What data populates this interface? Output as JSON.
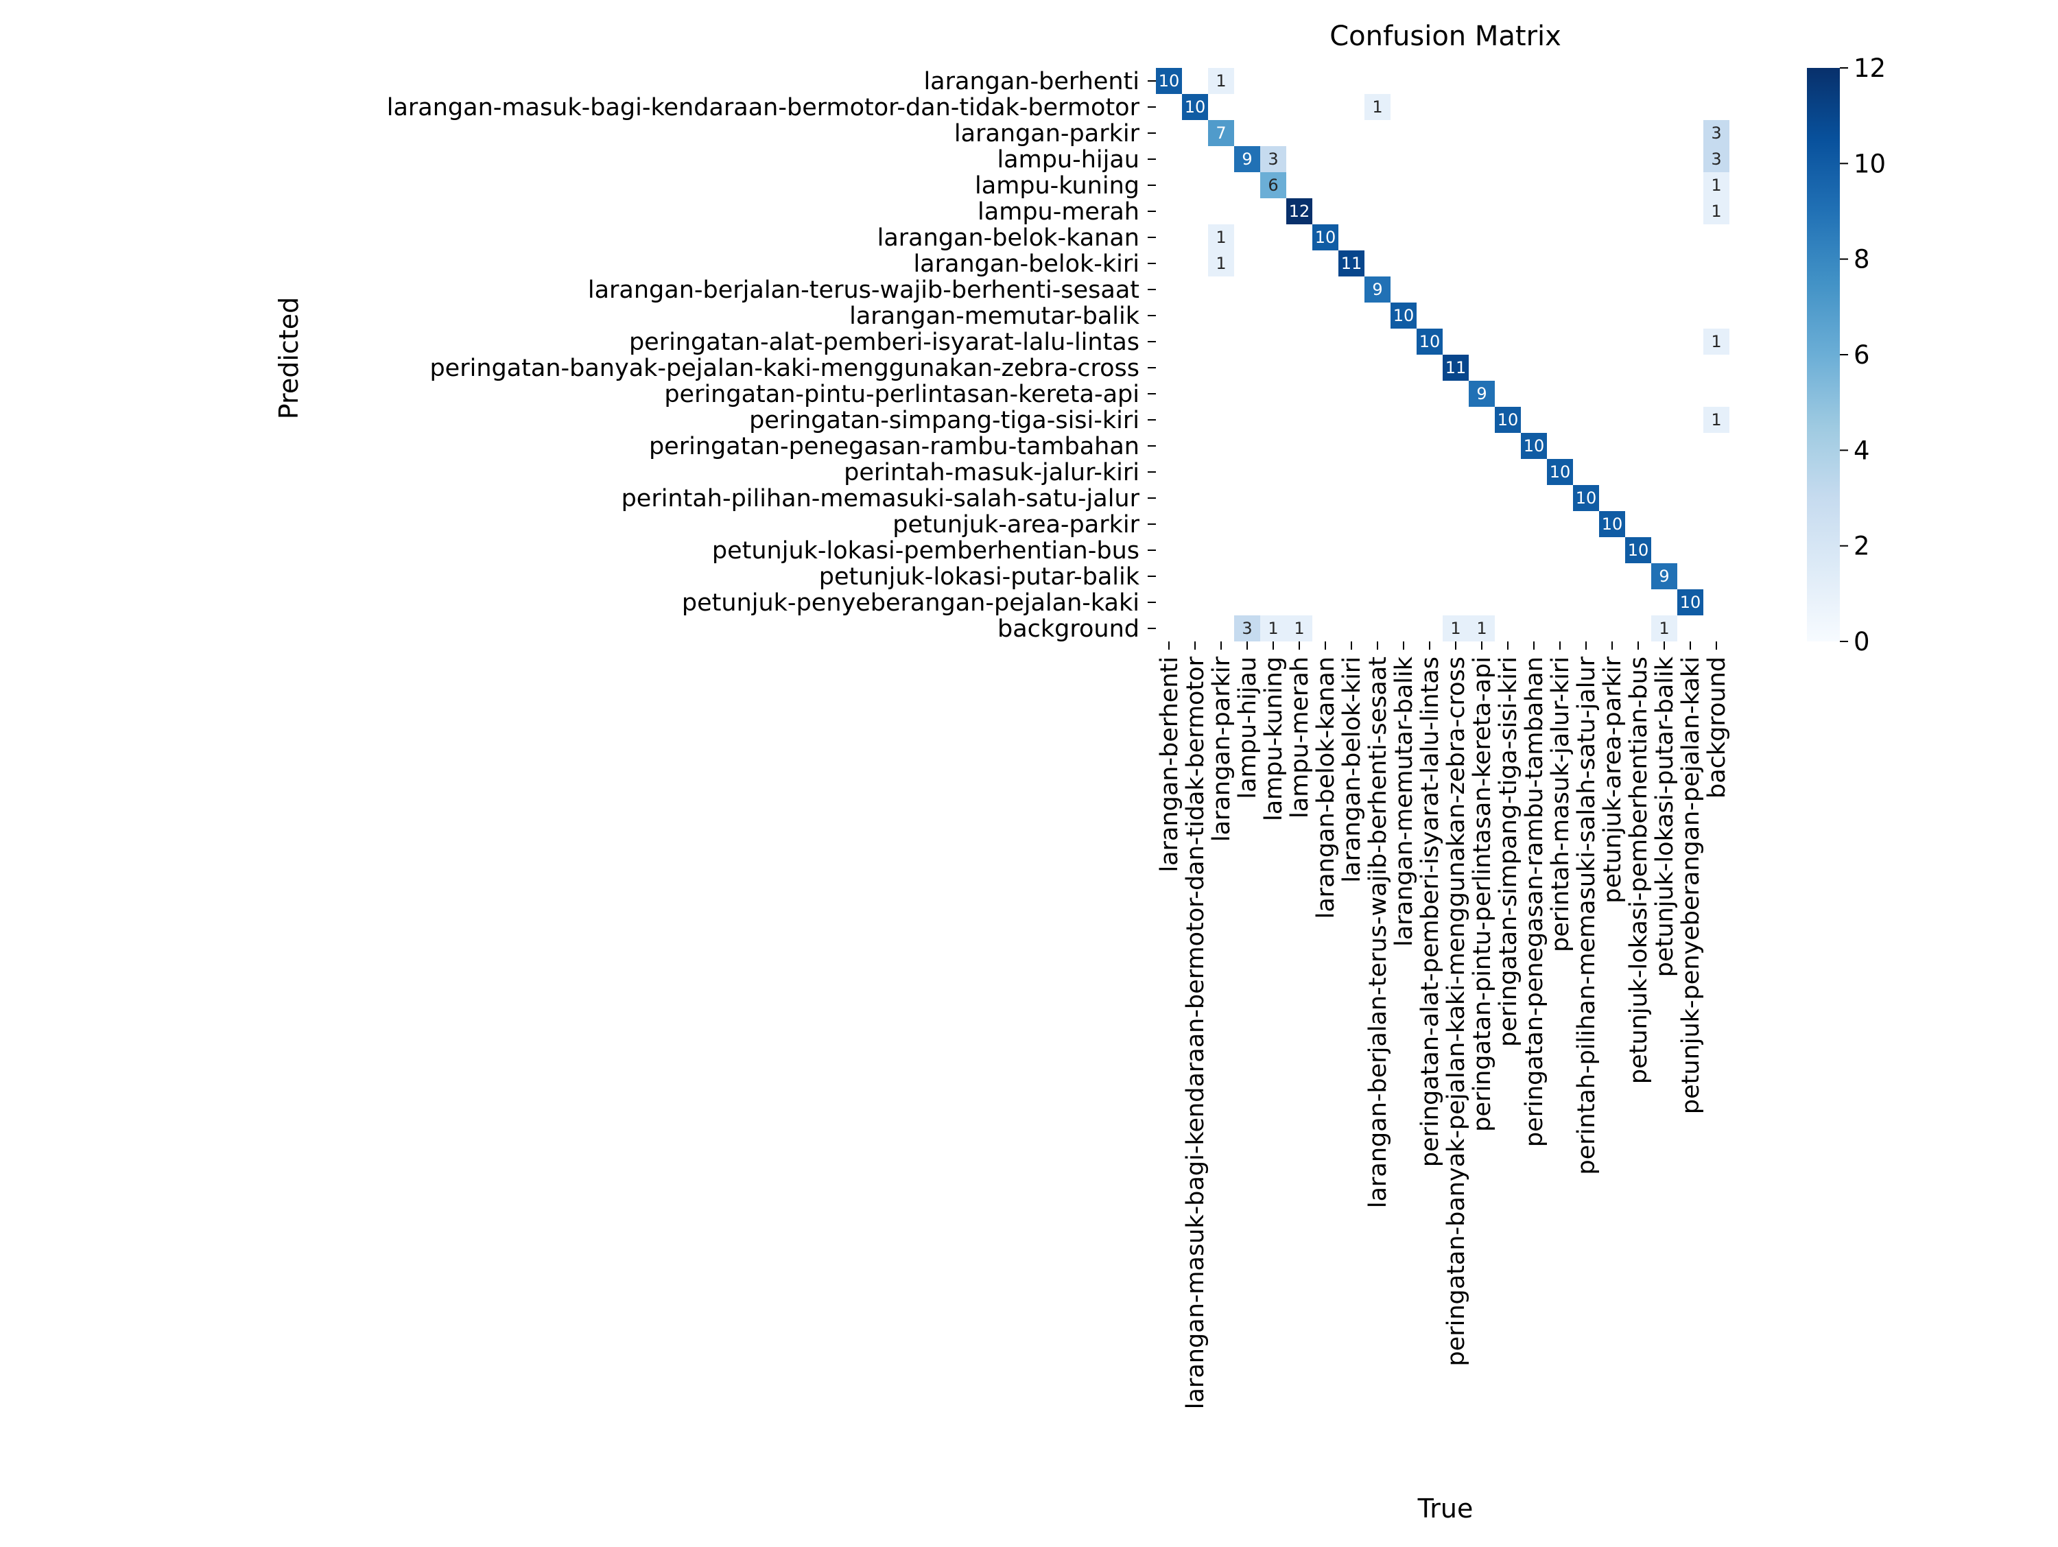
{
  "chart_data": {
    "type": "heatmap",
    "title": "Confusion Matrix",
    "xlabel": "True",
    "ylabel": "Predicted",
    "labels": [
      "larangan-berhenti",
      "larangan-masuk-bagi-kendaraan-bermotor-dan-tidak-bermotor",
      "larangan-parkir",
      "lampu-hijau",
      "lampu-kuning",
      "lampu-merah",
      "larangan-belok-kanan",
      "larangan-belok-kiri",
      "larangan-berjalan-terus-wajib-berhenti-sesaat",
      "larangan-memutar-balik",
      "peringatan-alat-pemberi-isyarat-lalu-lintas",
      "peringatan-banyak-pejalan-kaki-menggunakan-zebra-cross",
      "peringatan-pintu-perlintasan-kereta-api",
      "peringatan-simpang-tiga-sisi-kiri",
      "peringatan-penegasan-rambu-tambahan",
      "perintah-masuk-jalur-kiri",
      "perintah-pilihan-memasuki-salah-satu-jalur",
      "petunjuk-area-parkir",
      "petunjuk-lokasi-pemberhentian-bus",
      "petunjuk-lokasi-putar-balik",
      "petunjuk-penyeberangan-pejalan-kaki",
      "background"
    ],
    "matrix": [
      [
        10,
        0,
        1,
        0,
        0,
        0,
        0,
        0,
        0,
        0,
        0,
        0,
        0,
        0,
        0,
        0,
        0,
        0,
        0,
        0,
        0,
        0
      ],
      [
        0,
        10,
        0,
        0,
        0,
        0,
        0,
        0,
        1,
        0,
        0,
        0,
        0,
        0,
        0,
        0,
        0,
        0,
        0,
        0,
        0,
        0
      ],
      [
        0,
        0,
        7,
        0,
        0,
        0,
        0,
        0,
        0,
        0,
        0,
        0,
        0,
        0,
        0,
        0,
        0,
        0,
        0,
        0,
        0,
        3
      ],
      [
        0,
        0,
        0,
        9,
        3,
        0,
        0,
        0,
        0,
        0,
        0,
        0,
        0,
        0,
        0,
        0,
        0,
        0,
        0,
        0,
        0,
        3
      ],
      [
        0,
        0,
        0,
        0,
        6,
        0,
        0,
        0,
        0,
        0,
        0,
        0,
        0,
        0,
        0,
        0,
        0,
        0,
        0,
        0,
        0,
        1
      ],
      [
        0,
        0,
        0,
        0,
        0,
        12,
        0,
        0,
        0,
        0,
        0,
        0,
        0,
        0,
        0,
        0,
        0,
        0,
        0,
        0,
        0,
        1
      ],
      [
        0,
        0,
        1,
        0,
        0,
        0,
        10,
        0,
        0,
        0,
        0,
        0,
        0,
        0,
        0,
        0,
        0,
        0,
        0,
        0,
        0,
        0
      ],
      [
        0,
        0,
        1,
        0,
        0,
        0,
        0,
        11,
        0,
        0,
        0,
        0,
        0,
        0,
        0,
        0,
        0,
        0,
        0,
        0,
        0,
        0
      ],
      [
        0,
        0,
        0,
        0,
        0,
        0,
        0,
        0,
        9,
        0,
        0,
        0,
        0,
        0,
        0,
        0,
        0,
        0,
        0,
        0,
        0,
        0
      ],
      [
        0,
        0,
        0,
        0,
        0,
        0,
        0,
        0,
        0,
        10,
        0,
        0,
        0,
        0,
        0,
        0,
        0,
        0,
        0,
        0,
        0,
        0
      ],
      [
        0,
        0,
        0,
        0,
        0,
        0,
        0,
        0,
        0,
        0,
        10,
        0,
        0,
        0,
        0,
        0,
        0,
        0,
        0,
        0,
        0,
        1
      ],
      [
        0,
        0,
        0,
        0,
        0,
        0,
        0,
        0,
        0,
        0,
        0,
        11,
        0,
        0,
        0,
        0,
        0,
        0,
        0,
        0,
        0,
        0
      ],
      [
        0,
        0,
        0,
        0,
        0,
        0,
        0,
        0,
        0,
        0,
        0,
        0,
        9,
        0,
        0,
        0,
        0,
        0,
        0,
        0,
        0,
        0
      ],
      [
        0,
        0,
        0,
        0,
        0,
        0,
        0,
        0,
        0,
        0,
        0,
        0,
        0,
        10,
        0,
        0,
        0,
        0,
        0,
        0,
        0,
        1
      ],
      [
        0,
        0,
        0,
        0,
        0,
        0,
        0,
        0,
        0,
        0,
        0,
        0,
        0,
        0,
        10,
        0,
        0,
        0,
        0,
        0,
        0,
        0
      ],
      [
        0,
        0,
        0,
        0,
        0,
        0,
        0,
        0,
        0,
        0,
        0,
        0,
        0,
        0,
        0,
        10,
        0,
        0,
        0,
        0,
        0,
        0
      ],
      [
        0,
        0,
        0,
        0,
        0,
        0,
        0,
        0,
        0,
        0,
        0,
        0,
        0,
        0,
        0,
        0,
        10,
        0,
        0,
        0,
        0,
        0
      ],
      [
        0,
        0,
        0,
        0,
        0,
        0,
        0,
        0,
        0,
        0,
        0,
        0,
        0,
        0,
        0,
        0,
        0,
        10,
        0,
        0,
        0,
        0
      ],
      [
        0,
        0,
        0,
        0,
        0,
        0,
        0,
        0,
        0,
        0,
        0,
        0,
        0,
        0,
        0,
        0,
        0,
        0,
        10,
        0,
        0,
        0
      ],
      [
        0,
        0,
        0,
        0,
        0,
        0,
        0,
        0,
        0,
        0,
        0,
        0,
        0,
        0,
        0,
        0,
        0,
        0,
        0,
        9,
        0,
        0
      ],
      [
        0,
        0,
        0,
        0,
        0,
        0,
        0,
        0,
        0,
        0,
        0,
        0,
        0,
        0,
        0,
        0,
        0,
        0,
        0,
        0,
        10,
        0
      ],
      [
        0,
        0,
        0,
        3,
        1,
        1,
        0,
        0,
        0,
        0,
        0,
        1,
        1,
        0,
        0,
        0,
        0,
        0,
        0,
        1,
        0,
        0
      ]
    ],
    "colorbar": {
      "min": 0,
      "max": 12,
      "ticks": [
        0,
        2,
        4,
        6,
        8,
        10,
        12
      ],
      "colormap": "Blues"
    },
    "hide_zero_cells": true,
    "colors": {
      "low": "#f7fbff",
      "high": "#08306b",
      "light_text": "#ffffff",
      "dark_text": "#262626"
    }
  }
}
